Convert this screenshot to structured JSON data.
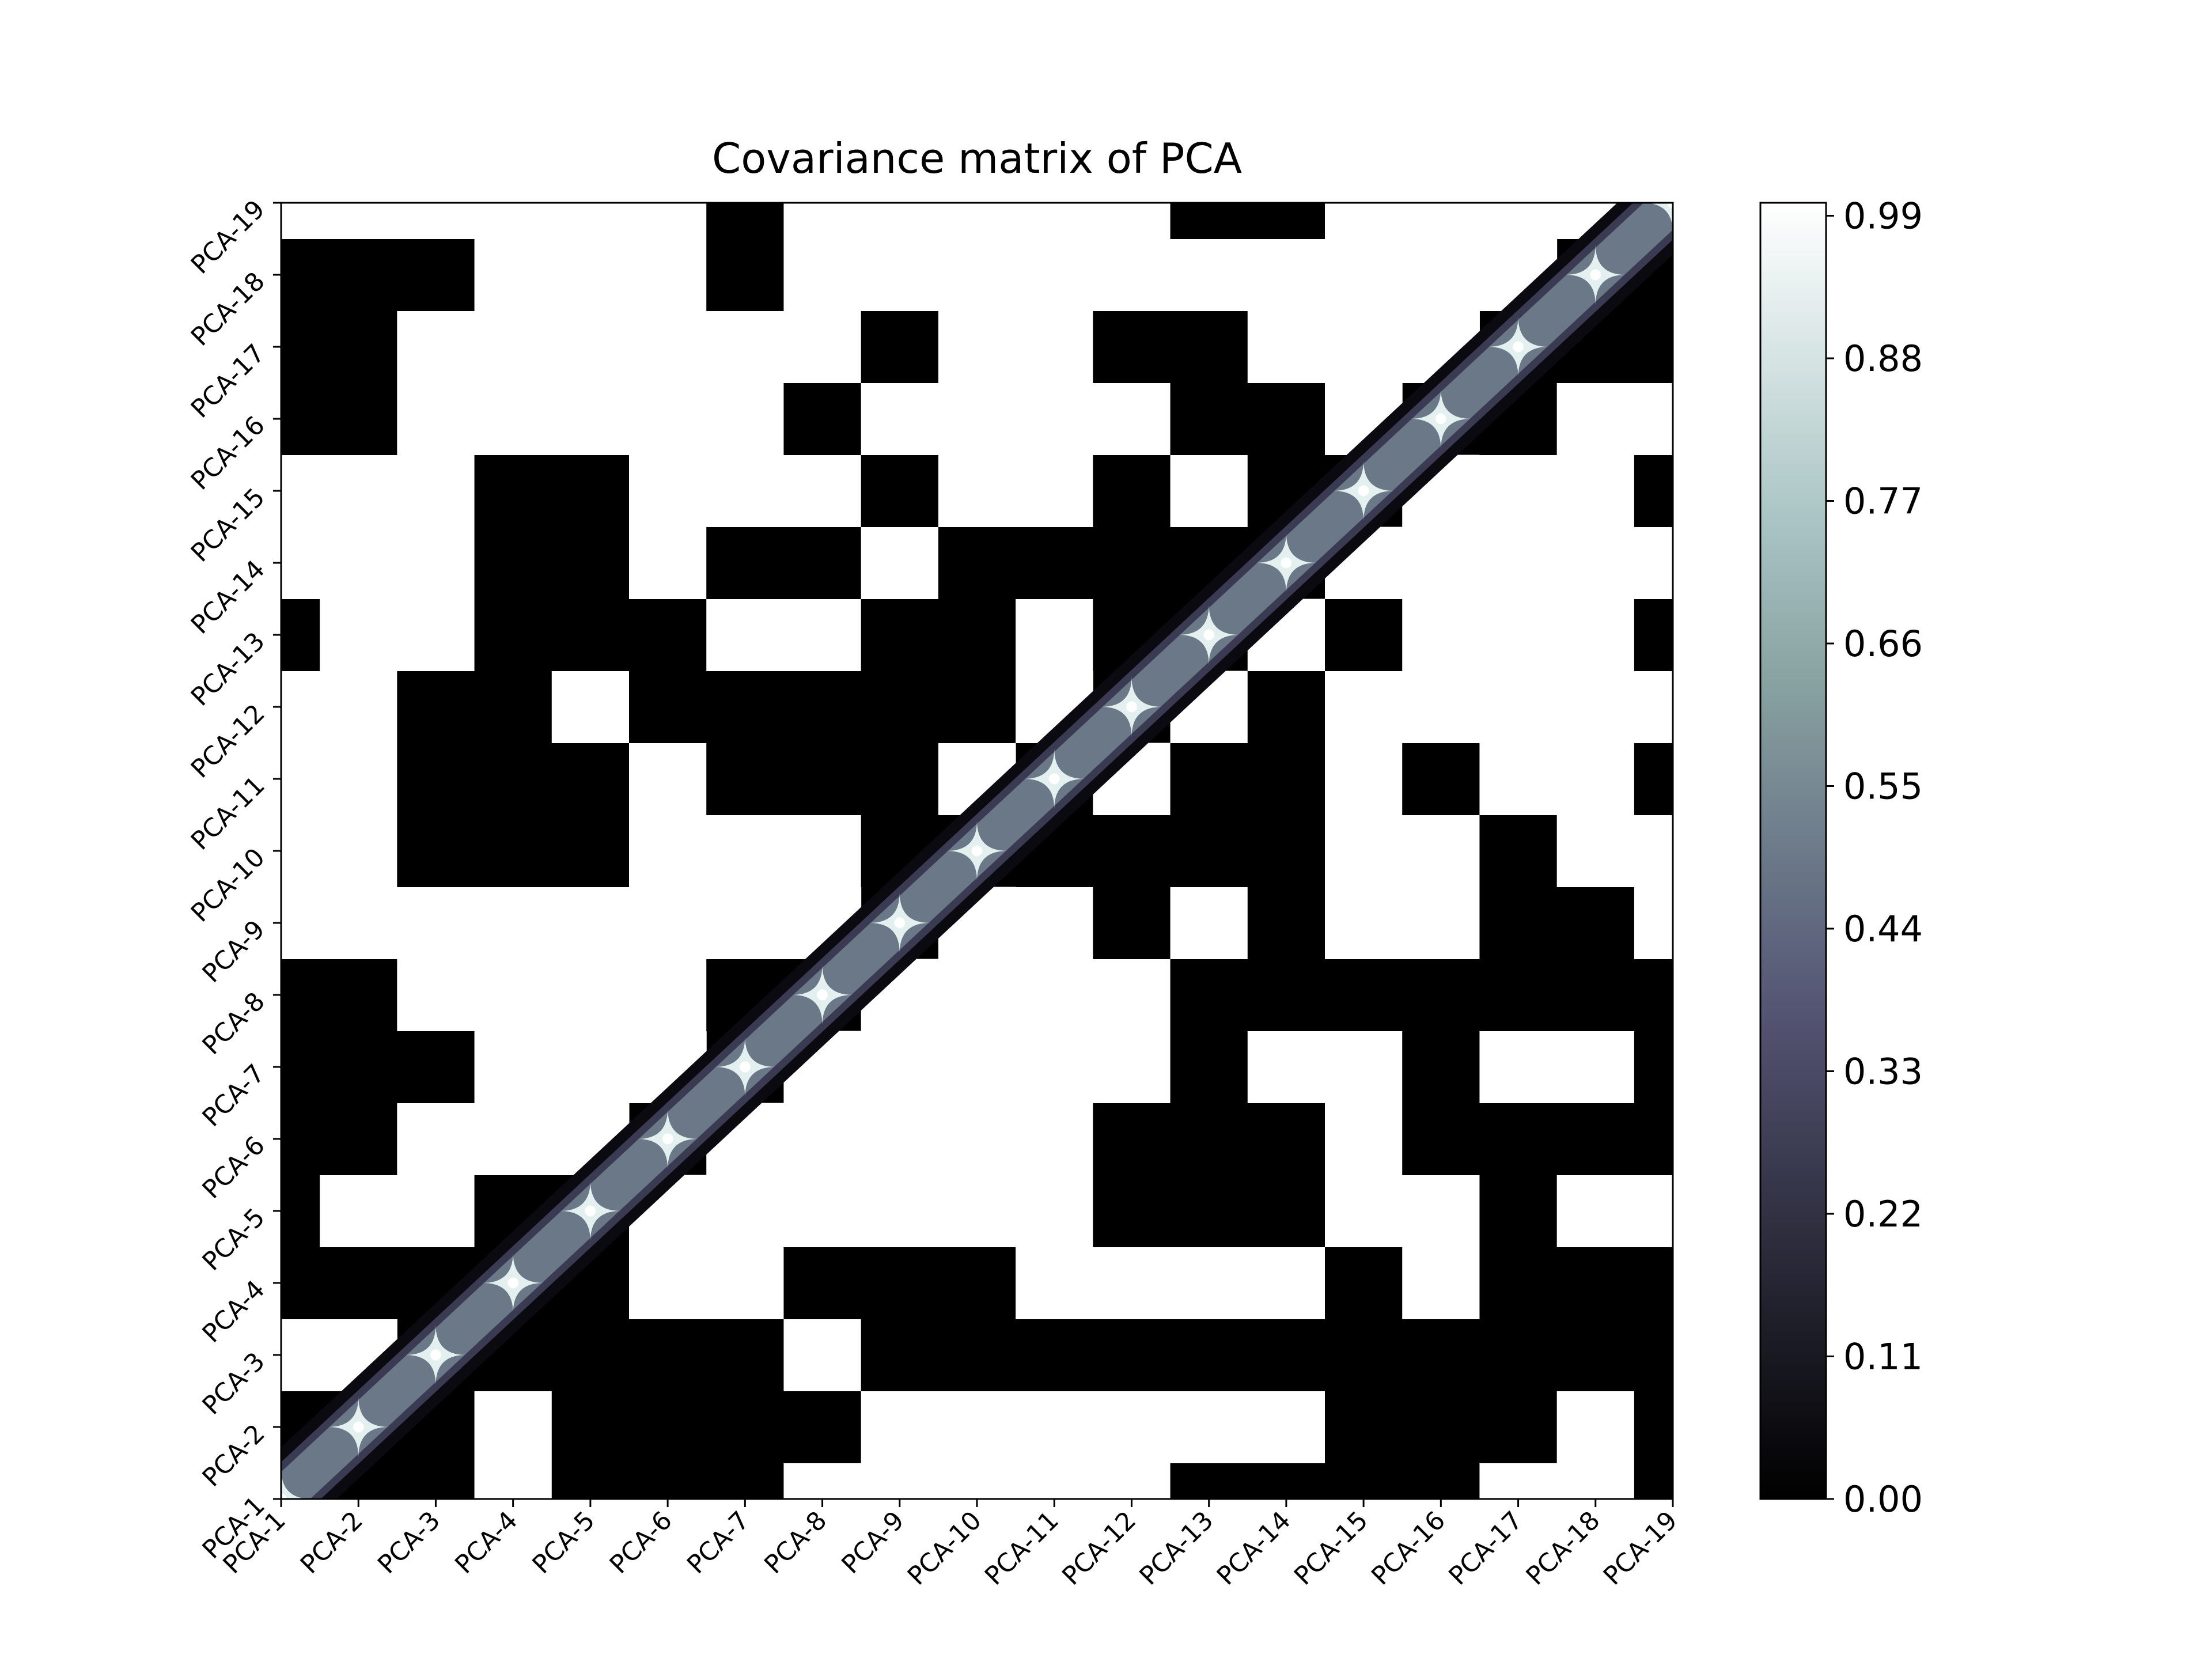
{
  "chart_data": {
    "type": "heatmap",
    "title": "Covariance matrix of PCA",
    "xlabel": "",
    "ylabel": "",
    "x_tick_labels": [
      "PCA-1",
      "PCA-2",
      "PCA-3",
      "PCA-4",
      "PCA-5",
      "PCA-6",
      "PCA-7",
      "PCA-8",
      "PCA-9",
      "PCA-10",
      "PCA-11",
      "PCA-12",
      "PCA-13",
      "PCA-14",
      "PCA-15",
      "PCA-16",
      "PCA-17",
      "PCA-18",
      "PCA-19"
    ],
    "y_tick_labels": [
      "PCA-1",
      "PCA-2",
      "PCA-3",
      "PCA-4",
      "PCA-5",
      "PCA-6",
      "PCA-7",
      "PCA-8",
      "PCA-9",
      "PCA-10",
      "PCA-11",
      "PCA-12",
      "PCA-13",
      "PCA-14",
      "PCA-15",
      "PCA-16",
      "PCA-17",
      "PCA-18",
      "PCA-19"
    ],
    "colorbar": {
      "ticks": [
        0.0,
        0.11,
        0.22,
        0.33,
        0.44,
        0.55,
        0.66,
        0.77,
        0.88,
        0.99
      ],
      "tick_labels": [
        "0.00",
        "0.11",
        "0.22",
        "0.33",
        "0.44",
        "0.55",
        "0.66",
        "0.77",
        "0.88",
        "0.99"
      ],
      "range": [
        0,
        1
      ],
      "colormap": "bone",
      "colors": [
        "#000000",
        "#1c1c26",
        "#38384d",
        "#545473",
        "#6c7a8a",
        "#87a0a0",
        "#a8c3c3",
        "#d4e2e2",
        "#ffffff"
      ]
    },
    "diagonal_value": 1.0,
    "off_diagonal_rows_bottom_to_top": [
      [
        1,
        0,
        0,
        1,
        0,
        0,
        0,
        1,
        1,
        1,
        1,
        1,
        0,
        0,
        0,
        0,
        1,
        1,
        0
      ],
      [
        0,
        1,
        0,
        1,
        0,
        0,
        0,
        0,
        1,
        1,
        1,
        1,
        1,
        1,
        0,
        0,
        0,
        1,
        0
      ],
      [
        1,
        1,
        1,
        0,
        0,
        0,
        0,
        1,
        0,
        0,
        0,
        0,
        0,
        0,
        0,
        0,
        0,
        0,
        0
      ],
      [
        0,
        0,
        0,
        1,
        0,
        1,
        1,
        0,
        0,
        0,
        1,
        1,
        1,
        1,
        0,
        1,
        0,
        0,
        0
      ],
      [
        0,
        1,
        1,
        0,
        1,
        1,
        1,
        1,
        1,
        1,
        1,
        0,
        0,
        0,
        1,
        1,
        0,
        1,
        1
      ],
      [
        0,
        0,
        1,
        1,
        1,
        1,
        1,
        1,
        1,
        1,
        1,
        0,
        0,
        0,
        1,
        0,
        0,
        0,
        0
      ],
      [
        0,
        0,
        0,
        1,
        1,
        1,
        1,
        1,
        1,
        1,
        1,
        1,
        0,
        1,
        1,
        0,
        1,
        1,
        0
      ],
      [
        0,
        0,
        1,
        1,
        1,
        1,
        0,
        1,
        1,
        1,
        1,
        1,
        0,
        0,
        0,
        0,
        0,
        0,
        0
      ],
      [
        1,
        1,
        1,
        1,
        1,
        1,
        1,
        1,
        1,
        1,
        1,
        0,
        1,
        0,
        1,
        1,
        0,
        0,
        1
      ],
      [
        1,
        1,
        0,
        0,
        0,
        1,
        1,
        1,
        0,
        0,
        0,
        0,
        0,
        0,
        1,
        1,
        0,
        1,
        1
      ],
      [
        1,
        1,
        0,
        0,
        0,
        1,
        0,
        0,
        0,
        1,
        1,
        1,
        0,
        0,
        1,
        0,
        1,
        1,
        0
      ],
      [
        1,
        1,
        0,
        0,
        1,
        0,
        0,
        0,
        0,
        0,
        1,
        0,
        1,
        0,
        1,
        1,
        1,
        1,
        1
      ],
      [
        0,
        1,
        1,
        0,
        0,
        0,
        1,
        1,
        0,
        0,
        1,
        0,
        0,
        1,
        0,
        1,
        1,
        1,
        0
      ],
      [
        1,
        1,
        1,
        0,
        0,
        1,
        0,
        0,
        1,
        0,
        0,
        0,
        0,
        1,
        1,
        1,
        1,
        1,
        1
      ],
      [
        1,
        1,
        1,
        0,
        0,
        1,
        1,
        1,
        0,
        1,
        1,
        0,
        1,
        0,
        0,
        1,
        1,
        1,
        0
      ],
      [
        0,
        0,
        1,
        1,
        1,
        1,
        1,
        0,
        1,
        1,
        1,
        1,
        0,
        0,
        1,
        1,
        0,
        1,
        1
      ],
      [
        0,
        0,
        1,
        1,
        1,
        1,
        1,
        1,
        0,
        1,
        1,
        0,
        0,
        1,
        1,
        1,
        1,
        0,
        0
      ],
      [
        0,
        0,
        0,
        1,
        1,
        1,
        0,
        1,
        1,
        1,
        1,
        1,
        1,
        1,
        1,
        1,
        1,
        1,
        0
      ],
      [
        1,
        1,
        1,
        1,
        1,
        1,
        0,
        1,
        1,
        1,
        1,
        1,
        0,
        0,
        1,
        1,
        1,
        1,
        1
      ]
    ]
  }
}
